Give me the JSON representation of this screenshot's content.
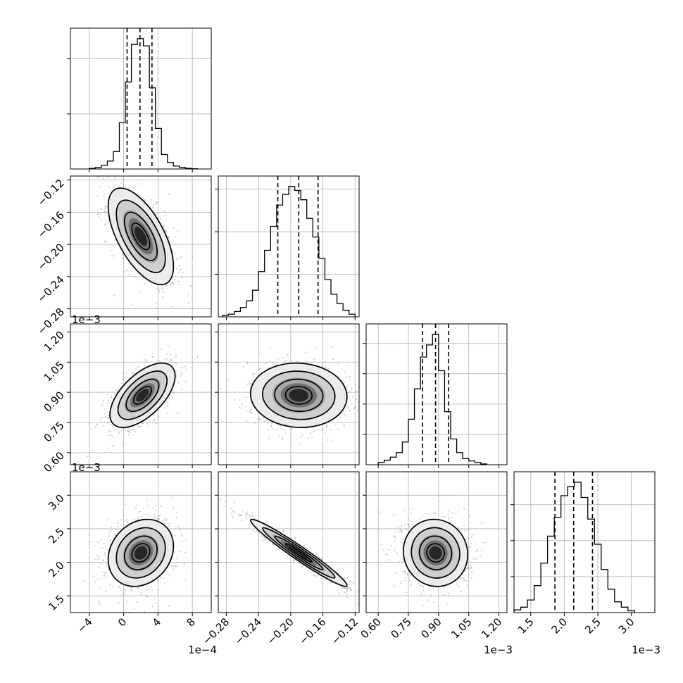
{
  "chart_data": {
    "type": "corner",
    "title": "",
    "n_params": 4,
    "grid": true,
    "colors": {
      "ink": "#000000",
      "grid": "#b0b0b0",
      "scatter": "#9a9a9a"
    },
    "params": [
      {
        "offset_label": "1e−4",
        "range": [
          -6.2,
          10.2
        ],
        "ticks": [
          -4,
          0,
          4,
          8
        ],
        "tick_labels": [
          "−4",
          "0",
          "4",
          "8"
        ],
        "quantiles": [
          0.4,
          1.9,
          3.3
        ],
        "hist_ticks": [
          0.38,
          0.76
        ],
        "hist": {
          "edges": [
            -4.0,
            -3.3,
            -2.6,
            -1.9,
            -1.2,
            -0.5,
            0.2,
            0.9,
            1.6,
            2.3,
            3.0,
            3.7,
            4.4,
            5.1,
            5.8,
            6.5,
            7.2,
            7.9,
            8.6
          ],
          "density": [
            0.004,
            0.01,
            0.025,
            0.055,
            0.12,
            0.32,
            0.6,
            0.86,
            0.9,
            0.85,
            0.56,
            0.28,
            0.1,
            0.045,
            0.02,
            0.01,
            0.005,
            0.002
          ]
        }
      },
      {
        "offset_label": "",
        "range": [
          -0.29,
          -0.115
        ],
        "ticks": [
          -0.28,
          -0.24,
          -0.2,
          -0.16,
          -0.12
        ],
        "tick_labels": [
          "−0.28",
          "−0.24",
          "−0.20",
          "−0.16",
          "−0.12"
        ],
        "quantiles": [
          -0.216,
          -0.19,
          -0.166
        ],
        "hist_ticks": [
          0.32,
          0.64,
          0.96
        ],
        "hist": {
          "edges": [
            -0.285,
            -0.2775,
            -0.27,
            -0.2625,
            -0.255,
            -0.2475,
            -0.24,
            -0.2325,
            -0.225,
            -0.2175,
            -0.21,
            -0.2025,
            -0.195,
            -0.1875,
            -0.18,
            -0.1725,
            -0.165,
            -0.1575,
            -0.15,
            -0.1425,
            -0.135,
            -0.1275,
            -0.12
          ],
          "density": [
            0.01,
            0.02,
            0.04,
            0.07,
            0.12,
            0.2,
            0.34,
            0.5,
            0.68,
            0.84,
            0.92,
            0.98,
            0.95,
            0.88,
            0.74,
            0.6,
            0.44,
            0.28,
            0.17,
            0.1,
            0.05,
            0.02
          ]
        }
      },
      {
        "offset_label": "1e−3",
        "range": [
          0.54,
          1.24
        ],
        "ticks": [
          0.6,
          0.75,
          0.9,
          1.05,
          1.2
        ],
        "tick_labels": [
          "0.60",
          "0.75",
          "0.90",
          "1.05",
          "1.20"
        ],
        "quantiles": [
          0.82,
          0.885,
          0.95
        ],
        "hist_ticks": [
          0.4,
          0.8,
          1.2,
          1.6
        ],
        "hist": {
          "edges": [
            0.6,
            0.63,
            0.66,
            0.69,
            0.72,
            0.75,
            0.78,
            0.81,
            0.84,
            0.87,
            0.9,
            0.93,
            0.96,
            0.99,
            1.02,
            1.05,
            1.08,
            1.11,
            1.14
          ],
          "density": [
            0.03,
            0.06,
            0.1,
            0.16,
            0.3,
            0.6,
            1.0,
            1.42,
            1.58,
            1.72,
            1.24,
            0.7,
            0.34,
            0.16,
            0.08,
            0.05,
            0.03,
            0.01
          ]
        }
      },
      {
        "offset_label": "1e−3",
        "range": [
          1.25,
          3.35
        ],
        "ticks": [
          1.5,
          2.0,
          2.5,
          3.0
        ],
        "tick_labels": [
          "1.5",
          "2.0",
          "2.5",
          "3.0"
        ],
        "quantiles": [
          1.86,
          2.14,
          2.42
        ],
        "hist_ticks": [
          0.4,
          0.8,
          1.2
        ],
        "hist": {
          "edges": [
            1.25,
            1.35,
            1.45,
            1.55,
            1.65,
            1.75,
            1.85,
            1.95,
            2.05,
            2.15,
            2.25,
            2.35,
            2.45,
            2.55,
            2.65,
            2.75,
            2.85,
            2.95,
            3.05
          ],
          "density": [
            0.03,
            0.06,
            0.14,
            0.3,
            0.55,
            0.85,
            1.06,
            1.3,
            1.4,
            1.45,
            1.28,
            1.04,
            0.76,
            0.48,
            0.26,
            0.12,
            0.06,
            0.02
          ]
        }
      }
    ],
    "pairs": [
      {
        "row": 1,
        "col": 0,
        "center": [
          2.0,
          -0.19
        ],
        "sd": [
          1.9,
          0.03
        ],
        "corr": -0.62
      },
      {
        "row": 2,
        "col": 0,
        "center": [
          2.2,
          0.885
        ],
        "sd": [
          1.9,
          0.08
        ],
        "corr": 0.6
      },
      {
        "row": 2,
        "col": 1,
        "center": [
          -0.19,
          0.885
        ],
        "sd": [
          0.03,
          0.08
        ],
        "corr": -0.05
      },
      {
        "row": 3,
        "col": 0,
        "center": [
          2.0,
          2.14
        ],
        "sd": [
          1.9,
          0.25
        ],
        "corr": 0.2
      },
      {
        "row": 3,
        "col": 1,
        "center": [
          -0.19,
          2.14
        ],
        "sd": [
          0.03,
          0.25
        ],
        "corr": -0.97
      },
      {
        "row": 3,
        "col": 2,
        "center": [
          0.885,
          2.14
        ],
        "sd": [
          0.08,
          0.25
        ],
        "corr": -0.05
      }
    ]
  }
}
